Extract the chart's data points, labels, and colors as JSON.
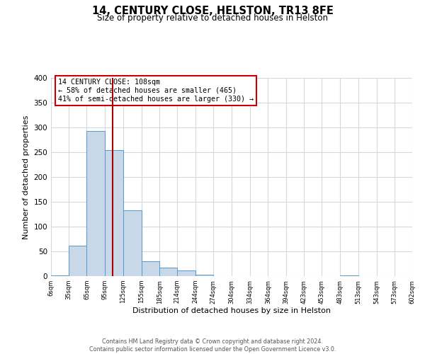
{
  "title": "14, CENTURY CLOSE, HELSTON, TR13 8FE",
  "subtitle": "Size of property relative to detached houses in Helston",
  "xlabel": "Distribution of detached houses by size in Helston",
  "ylabel": "Number of detached properties",
  "bar_color": "#c8d8e8",
  "bar_edge_color": "#5599cc",
  "bar_heights": [
    2,
    62,
    293,
    254,
    133,
    30,
    17,
    11,
    3,
    0,
    0,
    0,
    0,
    0,
    0,
    0,
    1,
    0,
    0,
    0
  ],
  "bin_edges": [
    6,
    35,
    65,
    95,
    125,
    155,
    185,
    214,
    244,
    274,
    304,
    334,
    364,
    394,
    423,
    453,
    483,
    513,
    543,
    573,
    602
  ],
  "tick_labels": [
    "6sqm",
    "35sqm",
    "65sqm",
    "95sqm",
    "125sqm",
    "155sqm",
    "185sqm",
    "214sqm",
    "244sqm",
    "274sqm",
    "304sqm",
    "334sqm",
    "364sqm",
    "394sqm",
    "423sqm",
    "453sqm",
    "483sqm",
    "513sqm",
    "543sqm",
    "573sqm",
    "602sqm"
  ],
  "ylim": [
    0,
    400
  ],
  "yticks": [
    0,
    50,
    100,
    150,
    200,
    250,
    300,
    350,
    400
  ],
  "property_size": 108,
  "vline_color": "#aa0000",
  "annotation_line1": "14 CENTURY CLOSE: 108sqm",
  "annotation_line2": "← 58% of detached houses are smaller (465)",
  "annotation_line3": "41% of semi-detached houses are larger (330) →",
  "annotation_box_color": "#ffffff",
  "annotation_box_edge_color": "#cc0000",
  "footer_text": "Contains HM Land Registry data © Crown copyright and database right 2024.\nContains public sector information licensed under the Open Government Licence v3.0.",
  "background_color": "#ffffff",
  "grid_color": "#d0d8e0"
}
